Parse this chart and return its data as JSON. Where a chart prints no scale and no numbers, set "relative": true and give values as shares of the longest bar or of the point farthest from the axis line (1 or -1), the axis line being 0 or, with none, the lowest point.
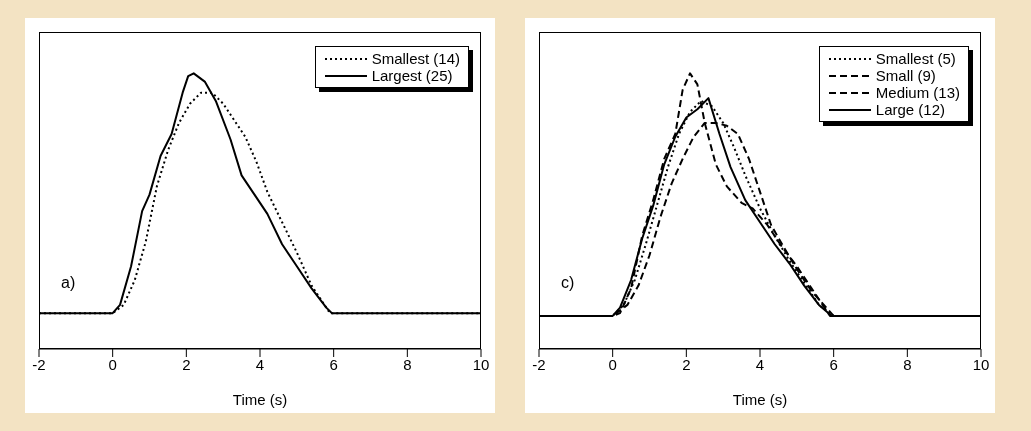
{
  "chart_data": [
    {
      "type": "line",
      "relative": true,
      "xlabel": "Time (s)",
      "xlim": [
        -2,
        10
      ],
      "xticks": [
        -2,
        0,
        2,
        4,
        6,
        8,
        10
      ],
      "legend": "top right",
      "grid": false,
      "annotations": [
        "a)"
      ],
      "series": [
        {
          "name": "Smallest (14)",
          "color": "#000000",
          "line_style": "dotted",
          "x": [
            -2,
            0,
            0.3,
            0.6,
            0.9,
            1.2,
            1.5,
            1.8,
            2.1,
            2.4,
            2.7,
            3.0,
            3.3,
            3.6,
            3.9,
            4.2,
            4.6,
            5.0,
            5.4,
            5.9,
            10
          ],
          "values": [
            0.13,
            0.13,
            0.16,
            0.25,
            0.39,
            0.59,
            0.72,
            0.82,
            0.89,
            0.93,
            0.93,
            0.89,
            0.83,
            0.77,
            0.68,
            0.57,
            0.46,
            0.35,
            0.23,
            0.13,
            0.13
          ]
        },
        {
          "name": "Largest (25)",
          "color": "#000000",
          "line_style": "solid",
          "x": [
            -2,
            0,
            0.2,
            0.5,
            0.8,
            1.0,
            1.3,
            1.6,
            1.9,
            2.05,
            2.2,
            2.5,
            2.8,
            3.2,
            3.5,
            3.8,
            4.2,
            4.6,
            5.0,
            5.4,
            5.8,
            5.95,
            10
          ],
          "values": [
            0.13,
            0.13,
            0.16,
            0.3,
            0.5,
            0.56,
            0.7,
            0.78,
            0.93,
            0.99,
            1,
            0.97,
            0.9,
            0.76,
            0.63,
            0.57,
            0.49,
            0.38,
            0.3,
            0.22,
            0.15,
            0.13,
            0.13
          ]
        }
      ]
    },
    {
      "type": "line",
      "relative": true,
      "xlabel": "Time (s)",
      "xlim": [
        -2,
        10
      ],
      "xticks": [
        -2,
        0,
        2,
        4,
        6,
        8,
        10
      ],
      "legend": "top right",
      "grid": false,
      "annotations": [
        "c)"
      ],
      "series": [
        {
          "name": "Smallest (5)",
          "color": "#000000",
          "line_style": "dotted",
          "x": [
            -2,
            0,
            0.3,
            0.6,
            0.9,
            1.2,
            1.5,
            1.8,
            2.1,
            2.4,
            2.7,
            3.0,
            3.3,
            3.6,
            4.0,
            4.4,
            4.8,
            5.2,
            5.6,
            6.0,
            10
          ],
          "values": [
            0.12,
            0.12,
            0.16,
            0.25,
            0.38,
            0.52,
            0.66,
            0.78,
            0.86,
            0.9,
            0.88,
            0.82,
            0.73,
            0.63,
            0.51,
            0.41,
            0.32,
            0.24,
            0.16,
            0.12,
            0.12
          ]
        },
        {
          "name": "Small (9)",
          "color": "#000000",
          "line_style": "dashed",
          "x": [
            -2,
            0,
            0.4,
            0.7,
            1.0,
            1.3,
            1.6,
            1.9,
            2.2,
            2.5,
            2.8,
            3.1,
            3.4,
            3.7,
            4.0,
            4.3,
            4.6,
            5.0,
            5.4,
            5.8,
            6.0,
            10
          ],
          "values": [
            0.12,
            0.12,
            0.16,
            0.23,
            0.34,
            0.48,
            0.6,
            0.69,
            0.77,
            0.82,
            0.82,
            0.81,
            0.78,
            0.69,
            0.57,
            0.45,
            0.38,
            0.29,
            0.21,
            0.15,
            0.12,
            0.12
          ]
        },
        {
          "name": "Medium (13)",
          "color": "#000000",
          "line_style": "dashed",
          "x": [
            -2,
            0,
            0.2,
            0.5,
            0.8,
            1.1,
            1.4,
            1.7,
            1.9,
            2.1,
            2.3,
            2.5,
            2.8,
            3.1,
            3.5,
            3.8,
            4.2,
            4.6,
            5.0,
            5.4,
            5.9,
            10
          ],
          "values": [
            0.12,
            0.12,
            0.13,
            0.22,
            0.41,
            0.54,
            0.69,
            0.78,
            0.94,
            1,
            0.96,
            0.82,
            0.67,
            0.59,
            0.53,
            0.51,
            0.45,
            0.37,
            0.3,
            0.22,
            0.12,
            0.12
          ]
        },
        {
          "name": "Large (12)",
          "color": "#000000",
          "line_style": "solid",
          "x": [
            -2,
            0,
            0.2,
            0.5,
            0.8,
            1.1,
            1.4,
            1.7,
            2.0,
            2.3,
            2.6,
            2.9,
            3.2,
            3.6,
            4.0,
            4.4,
            4.8,
            5.2,
            5.6,
            5.95,
            10
          ],
          "values": [
            0.12,
            0.12,
            0.15,
            0.25,
            0.4,
            0.52,
            0.67,
            0.77,
            0.84,
            0.87,
            0.91,
            0.78,
            0.66,
            0.54,
            0.46,
            0.38,
            0.31,
            0.23,
            0.16,
            0.12,
            0.12
          ]
        }
      ]
    }
  ]
}
